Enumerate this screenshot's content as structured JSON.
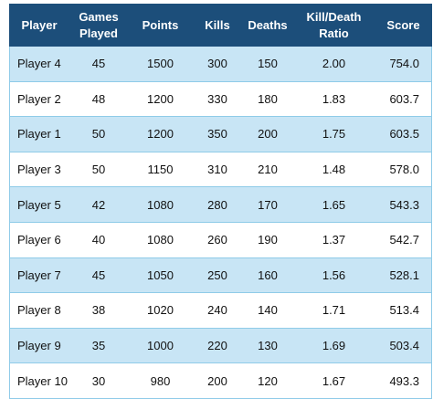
{
  "table": {
    "columns": [
      "Player",
      "Games Played",
      "Points",
      "Kills",
      "Deaths",
      "Kill/Death Ratio",
      "Score"
    ],
    "rows": [
      [
        "Player 4",
        "45",
        "1500",
        "300",
        "150",
        "2.00",
        "754.0"
      ],
      [
        "Player 2",
        "48",
        "1200",
        "330",
        "180",
        "1.83",
        "603.7"
      ],
      [
        "Player 1",
        "50",
        "1200",
        "350",
        "200",
        "1.75",
        "603.5"
      ],
      [
        "Player 3",
        "50",
        "1150",
        "310",
        "210",
        "1.48",
        "578.0"
      ],
      [
        "Player 5",
        "42",
        "1080",
        "280",
        "170",
        "1.65",
        "543.3"
      ],
      [
        "Player 6",
        "40",
        "1080",
        "260",
        "190",
        "1.37",
        "542.7"
      ],
      [
        "Player 7",
        "45",
        "1050",
        "250",
        "160",
        "1.56",
        "528.1"
      ],
      [
        "Player 8",
        "38",
        "1020",
        "240",
        "140",
        "1.71",
        "513.4"
      ],
      [
        "Player 9",
        "35",
        "1000",
        "220",
        "130",
        "1.69",
        "503.4"
      ],
      [
        "Player 10",
        "30",
        "980",
        "200",
        "120",
        "1.67",
        "493.3"
      ]
    ]
  }
}
